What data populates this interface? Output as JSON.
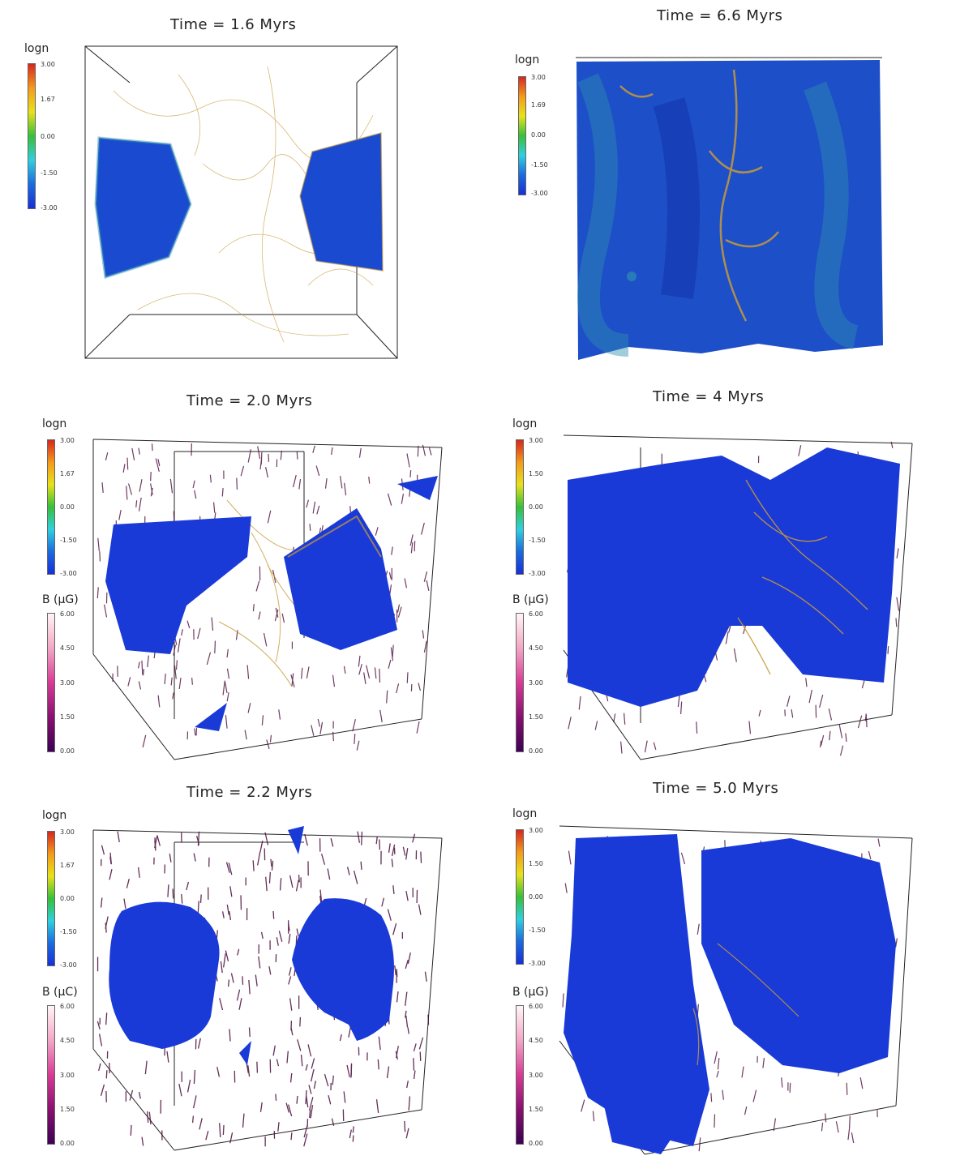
{
  "panels": [
    {
      "title": "Time = 1.6 Myrs",
      "density_label": "logn",
      "density_ticks": [
        "3.00",
        "1.67",
        "0.00",
        "-1.50",
        "-3.00"
      ],
      "b_label": "",
      "b_ticks": []
    },
    {
      "title": "Time = 6.6 Myrs",
      "density_label": "logn",
      "density_ticks": [
        "3.00",
        "1.69",
        "0.00",
        "-1.50",
        "-3.00"
      ],
      "b_label": "",
      "b_ticks": []
    },
    {
      "title": "Time = 2.0 Myrs",
      "density_label": "logn",
      "density_ticks": [
        "3.00",
        "1.67",
        "0.00",
        "-1.50",
        "-3.00"
      ],
      "b_label": "B (μG)",
      "b_ticks": [
        "6.00",
        "4.50",
        "3.00",
        "1.50",
        "0.00"
      ]
    },
    {
      "title": "Time = 4 Myrs",
      "density_label": "logn",
      "density_ticks": [
        "3.00",
        "1.50",
        "0.00",
        "-1.50",
        "-3.00"
      ],
      "b_label": "B (μG)",
      "b_ticks": [
        "6.00",
        "4.50",
        "3.00",
        "1.50",
        "0.00"
      ]
    },
    {
      "title": "Time = 2.2 Myrs",
      "density_label": "logn",
      "density_ticks": [
        "3.00",
        "1.67",
        "0.00",
        "-1.50",
        "-3.00"
      ],
      "b_label": "B (μC)",
      "b_ticks": [
        "6.00",
        "4.50",
        "3.00",
        "1.50",
        "0.00"
      ]
    },
    {
      "title": "Time = 5.0 Myrs",
      "density_label": "logn",
      "density_ticks": [
        "3.00",
        "1.50",
        "0.00",
        "-1.50",
        "-3.00"
      ],
      "b_label": "B (μG)",
      "b_ticks": [
        "6.00",
        "4.50",
        "3.00",
        "1.50",
        "0.00"
      ]
    }
  ],
  "colors": {
    "cloud_blue": "#1a3ad8",
    "cloud_teal": "#2f8fb0",
    "filament_gold": "#c89a3a",
    "vector_purple": "#4a0a3a"
  }
}
